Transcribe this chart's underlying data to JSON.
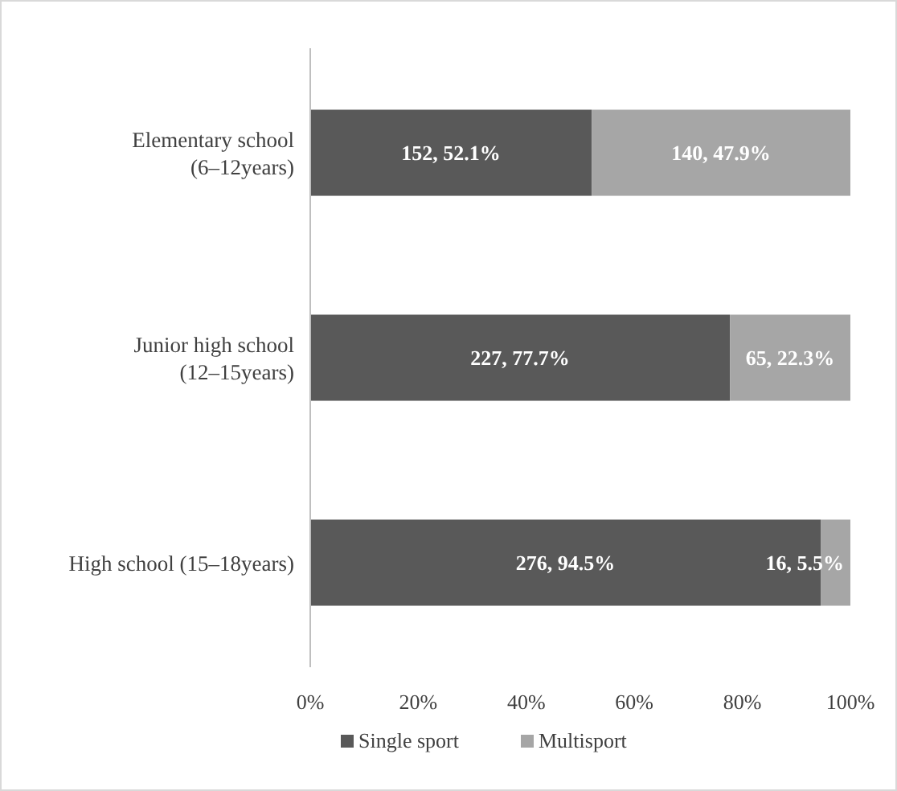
{
  "chart_data": {
    "type": "bar",
    "orientation": "horizontal",
    "stacked": true,
    "categories": [
      "Elementary school\n(6–12years)",
      "Junior high school\n(12–15years)",
      "High school (15–18years)"
    ],
    "series": [
      {
        "name": "Single sport",
        "color": "#595959",
        "values": [
          52.1,
          77.7,
          94.5
        ],
        "value_labels": [
          "152, 52.1%",
          "227, 77.7%",
          "276, 94.5%"
        ]
      },
      {
        "name": "Multisport",
        "color": "#a6a6a6",
        "values": [
          47.9,
          22.3,
          5.5
        ],
        "value_labels": [
          "140, 47.9%",
          "65, 22.3%",
          "16, 5.5%"
        ]
      }
    ],
    "xlim": [
      0,
      100
    ],
    "xticks": [
      {
        "value": 0,
        "label": "0%"
      },
      {
        "value": 20,
        "label": "20%"
      },
      {
        "value": 40,
        "label": "40%"
      },
      {
        "value": 60,
        "label": "60%"
      },
      {
        "value": 80,
        "label": "80%"
      },
      {
        "value": 100,
        "label": "100%"
      }
    ],
    "grid": false,
    "legend": "bottom"
  }
}
